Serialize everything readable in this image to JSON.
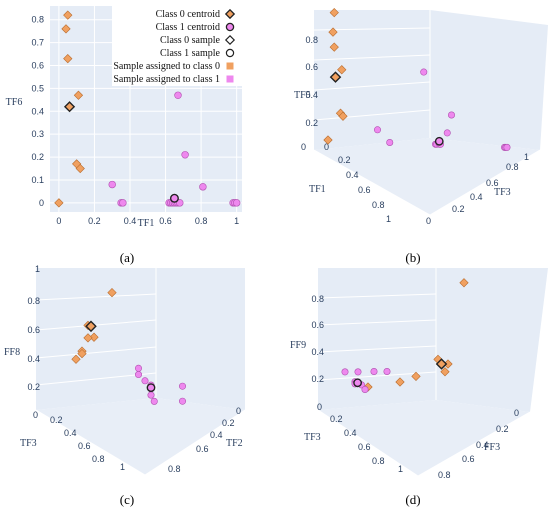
{
  "colors": {
    "class0": "#f0a060",
    "class0_edge": "#b86b2c",
    "class1": "#ee88ee",
    "class1_edge": "#b050b0",
    "centroid_edge": "#222222",
    "grid": "#ffffff",
    "scene_bg": "#e5ecf6",
    "panel_bg": "#e5ecf6",
    "tick_text": "#2a3f5f"
  },
  "legend": {
    "placement": "top-right",
    "entries": [
      {
        "label": "Class 0 centroid",
        "symbol": "diamond-filled-class0-edged"
      },
      {
        "label": "Class 1 centroid",
        "symbol": "circle-filled-class1-edged"
      },
      {
        "label": "Class 0 sample",
        "symbol": "diamond-open"
      },
      {
        "label": "Class 1 sample",
        "symbol": "circle-open"
      },
      {
        "label": "Sample assigned to class 0",
        "symbol": "square-class0"
      },
      {
        "label": "Sample assigned to class 1",
        "symbol": "square-class1"
      }
    ]
  },
  "chart_data": [
    {
      "panel_label": "(a)",
      "type": "scatter",
      "xlabel": "TF1",
      "ylabel": "TF6",
      "xlim": [
        -0.05,
        1.03
      ],
      "ylim": [
        -0.04,
        0.86
      ],
      "xticks": [
        0,
        0.2,
        0.4,
        0.6,
        0.8,
        1
      ],
      "xtick_labels": [
        "0",
        "0.2",
        "0.4",
        "0.6",
        "0.8",
        "1"
      ],
      "yticks": [
        0,
        0.1,
        0.2,
        0.3,
        0.4,
        0.5,
        0.6,
        0.7,
        0.8
      ],
      "ytick_labels": [
        "0",
        "0.1",
        "0.2",
        "0.3",
        "0.4",
        "0.5",
        "0.6",
        "0.7",
        "0.8"
      ],
      "grid": true,
      "series": [
        {
          "class": 0,
          "points": [
            [
              0.05,
              0.82
            ],
            [
              0.04,
              0.76
            ],
            [
              0.05,
              0.63
            ],
            [
              0.11,
              0.47
            ],
            [
              0.1,
              0.17
            ],
            [
              0.12,
              0.15
            ],
            [
              0.0,
              0.0
            ]
          ]
        },
        {
          "class": 1,
          "points": [
            [
              0.67,
              0.47
            ],
            [
              0.71,
              0.21
            ],
            [
              0.3,
              0.08
            ],
            [
              0.35,
              0.0
            ],
            [
              0.36,
              0.0
            ],
            [
              0.62,
              0.0
            ],
            [
              0.63,
              0.0
            ],
            [
              0.64,
              0.0
            ],
            [
              0.65,
              0.0
            ],
            [
              0.66,
              0.0
            ],
            [
              0.67,
              0.0
            ],
            [
              0.68,
              0.0
            ],
            [
              0.81,
              0.07
            ],
            [
              0.98,
              0.0
            ],
            [
              0.99,
              0.0
            ],
            [
              1.0,
              0.0
            ]
          ]
        }
      ],
      "centroids": [
        {
          "class": 0,
          "point": [
            0.06,
            0.42
          ]
        },
        {
          "class": 1,
          "point": [
            0.65,
            0.02
          ]
        }
      ]
    },
    {
      "panel_label": "(b)",
      "type": "scatter3d",
      "axes": {
        "x": {
          "label": "TF1",
          "ticks": [
            0,
            0.2,
            0.4,
            0.6,
            0.8,
            1
          ]
        },
        "y": {
          "label": "TF3",
          "ticks": [
            0,
            0.2,
            0.4,
            0.6,
            0.8,
            1
          ]
        },
        "z": {
          "label": "TF5",
          "ticks": [
            0,
            0.2,
            0.4,
            0.6,
            0.8
          ]
        }
      },
      "series": [
        {
          "class": 0,
          "points": [
            [
              0.05,
              0.0,
              0.85
            ],
            [
              0.04,
              0.0,
              0.72
            ],
            [
              0.05,
              0.0,
              0.62
            ],
            [
              0.11,
              0.0,
              0.47
            ],
            [
              0.1,
              0.0,
              0.18
            ],
            [
              0.12,
              0.0,
              0.16
            ],
            [
              0.0,
              0.0,
              0.0
            ]
          ]
        },
        {
          "class": 1,
          "points": [
            [
              0.67,
              0.2,
              0.47
            ],
            [
              0.7,
              0.6,
              0.2
            ],
            [
              0.3,
              0.2,
              0.08
            ],
            [
              0.35,
              0.3,
              0.0
            ],
            [
              0.62,
              0.5,
              0.0
            ],
            [
              0.63,
              0.5,
              0.0
            ],
            [
              0.65,
              0.5,
              0.0
            ],
            [
              0.66,
              0.5,
              0.0
            ],
            [
              0.81,
              0.3,
              0.07
            ],
            [
              0.98,
              0.9,
              0.0
            ],
            [
              0.99,
              0.9,
              0.0
            ],
            [
              1.0,
              0.9,
              0.0
            ]
          ]
        }
      ],
      "centroids": [
        {
          "class": 0,
          "point": [
            0.06,
            0.0,
            0.42
          ]
        },
        {
          "class": 1,
          "point": [
            0.65,
            0.5,
            0.02
          ]
        }
      ]
    },
    {
      "panel_label": "(c)",
      "type": "scatter3d",
      "axes": {
        "x": {
          "label": "TF2",
          "ticks": [
            0,
            0.2,
            0.4,
            0.6,
            0.8
          ]
        },
        "y": {
          "label": "TF3",
          "ticks": [
            0,
            0.2,
            0.4,
            0.6,
            0.8,
            1
          ]
        },
        "z": {
          "label": "FF8",
          "ticks": [
            0,
            0.2,
            0.4,
            0.6,
            0.8,
            1
          ]
        }
      },
      "series": [
        {
          "class": 0,
          "points": [
            [
              0.0,
              0.7,
              0.92
            ],
            [
              0.0,
              0.3,
              0.6
            ],
            [
              0.0,
              0.4,
              0.52
            ],
            [
              0.0,
              0.3,
              0.5
            ],
            [
              0.0,
              0.2,
              0.38
            ],
            [
              0.0,
              0.2,
              0.36
            ],
            [
              0.0,
              0.1,
              0.3
            ]
          ]
        },
        {
          "class": 1,
          "points": [
            [
              0.5,
              0.6,
              0.3
            ],
            [
              0.5,
              0.6,
              0.25
            ],
            [
              0.6,
              0.6,
              0.2
            ],
            [
              0.6,
              0.7,
              0.18
            ],
            [
              0.6,
              0.7,
              0.15
            ],
            [
              0.6,
              0.7,
              0.1
            ],
            [
              0.65,
              0.7,
              0.05
            ],
            [
              0.9,
              0.9,
              0.2
            ],
            [
              0.9,
              0.9,
              0.08
            ]
          ]
        }
      ],
      "centroids": [
        {
          "class": 0,
          "point": [
            0.0,
            0.35,
            0.6
          ]
        },
        {
          "class": 1,
          "point": [
            0.6,
            0.7,
            0.16
          ]
        }
      ]
    },
    {
      "panel_label": "(d)",
      "type": "scatter3d",
      "axes": {
        "x": {
          "label": "FF3",
          "ticks": [
            0,
            0.2,
            0.4,
            0.6,
            0.8
          ]
        },
        "y": {
          "label": "TF3",
          "ticks": [
            0,
            0.2,
            0.4,
            0.6,
            0.8,
            1
          ]
        },
        "z": {
          "label": "FF9",
          "ticks": [
            0,
            0.2,
            0.4,
            0.6,
            0.8
          ]
        }
      },
      "series": [
        {
          "class": 0,
          "points": [
            [
              0.8,
              0.0,
              0.85
            ],
            [
              0.6,
              0.0,
              0.12
            ],
            [
              0.7,
              0.1,
              0.1
            ],
            [
              0.7,
              0.2,
              0.05
            ],
            [
              0.5,
              0.3,
              0.03
            ],
            [
              0.4,
              0.4,
              0.0
            ],
            [
              0.2,
              0.6,
              0.0
            ]
          ]
        },
        {
          "class": 1,
          "points": [
            [
              0.0,
              0.5,
              0.12
            ],
            [
              0.1,
              0.5,
              0.12
            ],
            [
              0.2,
              0.4,
              0.1
            ],
            [
              0.3,
              0.4,
              0.1
            ],
            [
              0.1,
              0.6,
              0.05
            ],
            [
              0.1,
              0.6,
              0.03
            ],
            [
              0.15,
              0.6,
              0.02
            ],
            [
              0.2,
              0.7,
              0.0
            ]
          ]
        }
      ],
      "centroids": [
        {
          "class": 0,
          "point": [
            0.65,
            0.1,
            0.1
          ]
        },
        {
          "class": 1,
          "point": [
            0.12,
            0.6,
            0.04
          ]
        }
      ]
    }
  ]
}
